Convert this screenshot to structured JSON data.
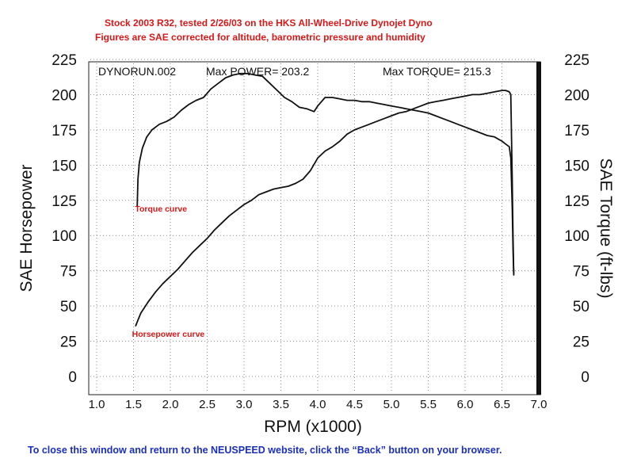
{
  "header": {
    "line1": "Stock 2003 R32, tested 2/26/03 on the HKS All-Wheel-Drive Dynojet Dyno",
    "line2": "Figures are SAE corrected for altitude, barometric pressure and humidity"
  },
  "footer": {
    "text": "To close this window and return to the NEUSPEED website, click the “Back” button on your browser."
  },
  "colors": {
    "header_red": "#d81818",
    "annotation_red": "#d81818",
    "footer_blue": "#1b2fb8",
    "curve": "#111111",
    "grid": "#8a8a8a"
  },
  "chart_data": {
    "type": "line",
    "run_label": "DYNORUN.002",
    "max_power_label": "Max POWER= 203.2",
    "max_torque_label": "Max TORQUE= 215.3",
    "xlabel": "RPM (x1000)",
    "ylabel_left": "SAE Horsepower",
    "ylabel_right": "SAE Torque (ft-lbs)",
    "xlim": [
      1.0,
      7.0
    ],
    "ylim": [
      0,
      225
    ],
    "xticks": [
      "1.0",
      "1.5",
      "2.0",
      "2.5",
      "3.0",
      "3.5",
      "4.0",
      "4.5",
      "5.0",
      "5.5",
      "6.0",
      "6.5",
      "7.0"
    ],
    "yticks_left": [
      "0",
      "25",
      "50",
      "75",
      "100",
      "125",
      "150",
      "175",
      "200",
      "225"
    ],
    "yticks_right": [
      "0",
      "25",
      "50",
      "75",
      "100",
      "125",
      "150",
      "175",
      "200",
      "225"
    ],
    "grid": true,
    "series": [
      {
        "name": "Torque curve",
        "axis": "right",
        "x": [
          1.55,
          1.56,
          1.58,
          1.62,
          1.68,
          1.75,
          1.85,
          1.95,
          2.05,
          2.15,
          2.25,
          2.35,
          2.45,
          2.55,
          2.65,
          2.75,
          2.85,
          2.95,
          3.05,
          3.15,
          3.25,
          3.35,
          3.45,
          3.55,
          3.65,
          3.75,
          3.85,
          3.95,
          4.0,
          4.1,
          4.2,
          4.3,
          4.4,
          4.5,
          4.6,
          4.7,
          4.8,
          4.9,
          5.0,
          5.1,
          5.2,
          5.3,
          5.4,
          5.5,
          5.6,
          5.7,
          5.8,
          5.9,
          6.0,
          6.1,
          6.2,
          6.3,
          6.4,
          6.5,
          6.55,
          6.6,
          6.62,
          6.64,
          6.65,
          6.66
        ],
        "values": [
          121,
          140,
          152,
          162,
          170,
          175,
          179,
          181,
          184,
          189,
          193,
          196,
          198,
          204,
          208,
          212,
          214,
          215,
          215,
          214,
          213,
          208,
          203,
          198,
          195,
          191,
          190,
          188,
          192,
          198,
          198,
          197,
          196,
          196,
          195,
          195,
          194,
          193,
          192,
          191,
          190,
          189,
          188,
          187,
          185,
          183,
          181,
          179,
          177,
          175,
          173,
          171,
          170,
          167,
          165,
          163,
          155,
          120,
          90,
          73
        ]
      },
      {
        "name": "Horsepower curve",
        "axis": "left",
        "x": [
          1.53,
          1.56,
          1.6,
          1.7,
          1.8,
          1.9,
          2.0,
          2.1,
          2.2,
          2.3,
          2.4,
          2.5,
          2.6,
          2.7,
          2.8,
          2.9,
          3.0,
          3.1,
          3.2,
          3.3,
          3.4,
          3.5,
          3.6,
          3.7,
          3.8,
          3.9,
          4.0,
          4.1,
          4.2,
          4.3,
          4.4,
          4.5,
          4.6,
          4.7,
          4.8,
          4.9,
          5.0,
          5.1,
          5.2,
          5.3,
          5.4,
          5.5,
          5.6,
          5.7,
          5.8,
          5.9,
          6.0,
          6.1,
          6.2,
          6.3,
          6.4,
          6.5,
          6.55,
          6.6,
          6.62,
          6.64,
          6.65,
          6.66
        ],
        "values": [
          36,
          40,
          45,
          53,
          60,
          66,
          71,
          76,
          82,
          88,
          93,
          98,
          104,
          109,
          114,
          118,
          122,
          125,
          129,
          131,
          133,
          134,
          135,
          137,
          140,
          146,
          155,
          160,
          163,
          167,
          172,
          175,
          177,
          179,
          181,
          183,
          185,
          187,
          188,
          190,
          192,
          194,
          195,
          196,
          197,
          198,
          199,
          200,
          200,
          201,
          202,
          203,
          203,
          202,
          200,
          140,
          100,
          72
        ]
      }
    ],
    "annotations": [
      {
        "text": "Torque curve",
        "x": 1.52,
        "y": 117
      },
      {
        "text": "Horsepower curve",
        "x": 1.48,
        "y": 28
      }
    ]
  }
}
